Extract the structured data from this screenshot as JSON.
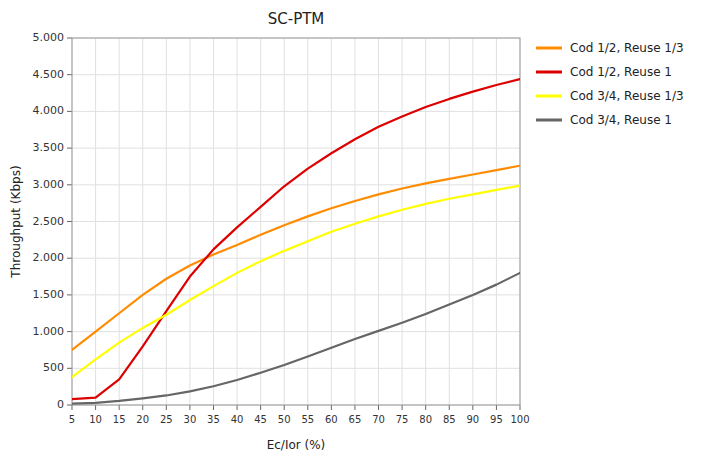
{
  "chart_data": {
    "type": "line",
    "title": "SC-PTM",
    "xlabel": "Ec/Ior (%)",
    "ylabel": "Throughput (Kbps)",
    "x": [
      5,
      10,
      15,
      20,
      25,
      30,
      35,
      40,
      45,
      50,
      55,
      60,
      65,
      70,
      75,
      80,
      85,
      90,
      95,
      100
    ],
    "series": [
      {
        "name": "Cod 1/2, Reuse 1/3",
        "color": "#FF8C00",
        "values": [
          750,
          1000,
          1250,
          1500,
          1720,
          1900,
          2050,
          2180,
          2320,
          2450,
          2570,
          2680,
          2780,
          2870,
          2950,
          3020,
          3080,
          3140,
          3200,
          3260
        ]
      },
      {
        "name": "Cod 1/2, Reuse 1",
        "color": "#DD0000",
        "values": [
          80,
          100,
          350,
          800,
          1280,
          1750,
          2120,
          2420,
          2700,
          2980,
          3220,
          3430,
          3620,
          3790,
          3930,
          4060,
          4170,
          4270,
          4360,
          4440
        ]
      },
      {
        "name": "Cod 3/4, Reuse 1/3",
        "color": "#FFFF00",
        "values": [
          380,
          620,
          850,
          1050,
          1230,
          1430,
          1620,
          1800,
          1960,
          2100,
          2230,
          2360,
          2470,
          2570,
          2660,
          2740,
          2810,
          2870,
          2930,
          2990
        ]
      },
      {
        "name": "Cod 3/4, Reuse 1",
        "color": "#666666",
        "values": [
          20,
          30,
          55,
          90,
          130,
          185,
          255,
          340,
          440,
          545,
          660,
          780,
          900,
          1010,
          1120,
          1240,
          1370,
          1500,
          1640,
          1800
        ]
      }
    ],
    "xlim": [
      5,
      100
    ],
    "ylim": [
      0,
      5000
    ],
    "xticks": [
      5,
      10,
      15,
      20,
      25,
      30,
      35,
      40,
      45,
      50,
      55,
      60,
      65,
      70,
      75,
      80,
      85,
      90,
      95,
      100
    ],
    "yticks": [
      0,
      500,
      {
        "value": 1000,
        "label": "1.000"
      },
      {
        "value": 1500,
        "label": "1.500"
      },
      {
        "value": 2000,
        "label": "2.000"
      },
      {
        "value": 2500,
        "label": "2.500"
      },
      {
        "value": 3000,
        "label": "3.000"
      },
      {
        "value": 3500,
        "label": "3.500"
      },
      {
        "value": 4000,
        "label": "4.000"
      },
      {
        "value": 4500,
        "label": "4.500"
      },
      {
        "value": 5000,
        "label": "5.000"
      }
    ],
    "grid": true,
    "legend": "right"
  }
}
